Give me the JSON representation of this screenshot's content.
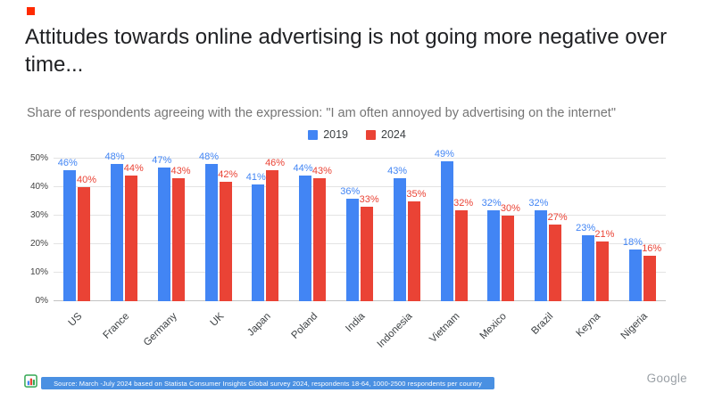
{
  "title": "Attitudes towards online advertising is not going more negative over time...",
  "subtitle": "Share of respondents agreeing with the expression: \"I am often annoyed by advertising on the internet\"",
  "chart_data": {
    "type": "bar",
    "categories": [
      "US",
      "France",
      "Germany",
      "UK",
      "Japan",
      "Poland",
      "India",
      "Indonesia",
      "Vietnam",
      "Mexico",
      "Brazil",
      "Keyna",
      "Nigeria"
    ],
    "series": [
      {
        "name": "2019",
        "color": "#4285F4",
        "values": [
          46,
          48,
          47,
          48,
          41,
          44,
          36,
          43,
          49,
          32,
          32,
          23,
          18
        ]
      },
      {
        "name": "2024",
        "color": "#EA4335",
        "values": [
          40,
          44,
          43,
          42,
          46,
          43,
          33,
          35,
          32,
          30,
          27,
          21,
          16
        ]
      }
    ],
    "value_suffix": "%",
    "ylim": [
      0,
      50
    ],
    "yticks": [
      "0%",
      "10%",
      "20%",
      "30%",
      "40%",
      "50%"
    ],
    "grid": true,
    "legend_position": "top-center",
    "xlabel": "",
    "ylabel": ""
  },
  "footer": {
    "source": "Source: March -July 2024  based on Statista Consumer Insights Global survey 2024, respondents 18-64, 1000-2500 respondents per country",
    "brand": "Google"
  },
  "colors": {
    "accent_square": "#FF2A00",
    "source_banner_bg": "#4A90E2",
    "title_text": "#202124",
    "subtitle_text": "#757575",
    "brand_text": "#9AA0A6"
  }
}
